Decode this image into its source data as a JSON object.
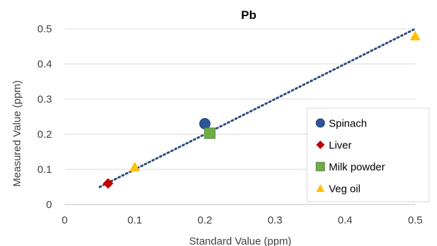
{
  "chart_data": {
    "type": "scatter",
    "title": "Pb",
    "xlabel": "Standard Value (ppm)",
    "ylabel": "Measured Value (ppm)",
    "xlim": [
      0,
      0.5
    ],
    "ylim": [
      0,
      0.5
    ],
    "xticks": [
      "0",
      "0.1",
      "0.2",
      "0.3",
      "0.4",
      "0.5"
    ],
    "yticks": [
      "0",
      "0.1",
      "0.2",
      "0.3",
      "0.4",
      "0.5"
    ],
    "grid": "horizontal",
    "legend_position": "right",
    "series": [
      {
        "name": "Spinach",
        "marker": "circle",
        "color": "#2E5597",
        "points": [
          {
            "x": 0.2,
            "y": 0.23
          }
        ]
      },
      {
        "name": "Liver",
        "marker": "diamond",
        "color": "#C00000",
        "points": [
          {
            "x": 0.062,
            "y": 0.06
          }
        ]
      },
      {
        "name": "Milk powder",
        "marker": "square",
        "color": "#70AD47",
        "points": [
          {
            "x": 0.207,
            "y": 0.203
          }
        ]
      },
      {
        "name": "Veg oil",
        "marker": "triangle",
        "color": "#FFC000",
        "points": [
          {
            "x": 0.1,
            "y": 0.107
          },
          {
            "x": 0.5,
            "y": 0.48
          }
        ]
      }
    ],
    "trendline": {
      "style": "dotted",
      "color": "#2E4A7D",
      "x": [
        0.05,
        0.5
      ],
      "y": [
        0.05,
        0.5
      ]
    }
  }
}
